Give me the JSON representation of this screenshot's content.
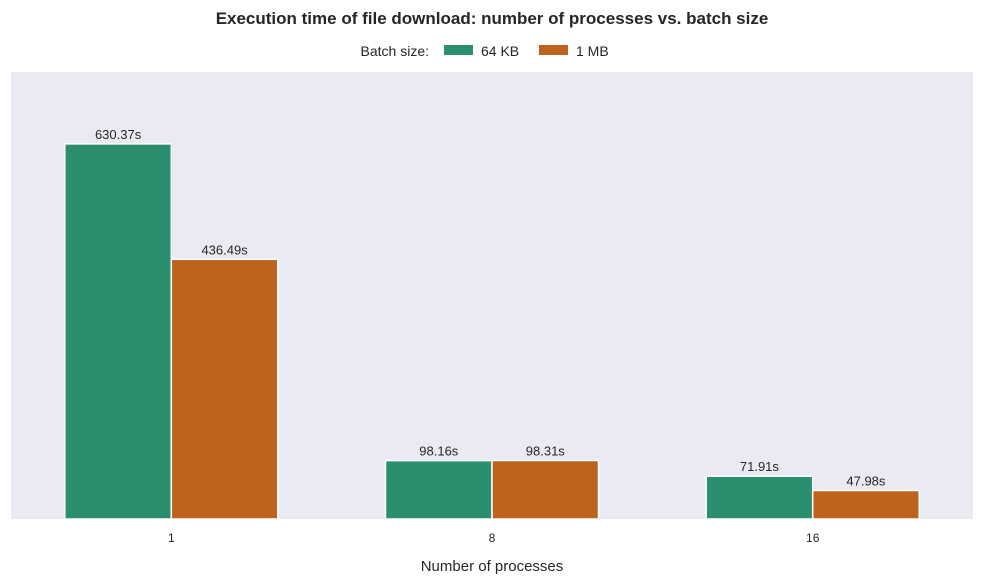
{
  "chart_data": {
    "type": "bar",
    "title": "Execution time of file download: number of processes vs. batch size",
    "legend_title": "Batch size:",
    "legend_position": "top-center",
    "xlabel": "Number of processes",
    "ylabel": "",
    "categories": [
      "1",
      "8",
      "16"
    ],
    "series": [
      {
        "name": "64 KB",
        "color": "#2a8e6f",
        "values": [
          630.37,
          98.16,
          71.91
        ],
        "labels": [
          "630.37s",
          "98.16s",
          "71.91s"
        ]
      },
      {
        "name": "1 MB",
        "color": "#bd631e",
        "values": [
          436.49,
          98.31,
          47.98
        ],
        "labels": [
          "436.49s",
          "98.31s",
          "47.98s"
        ]
      }
    ],
    "ylim": [
      0,
      750
    ],
    "y_axis_visible": false,
    "grid": false,
    "background": "#eaeaf2"
  }
}
